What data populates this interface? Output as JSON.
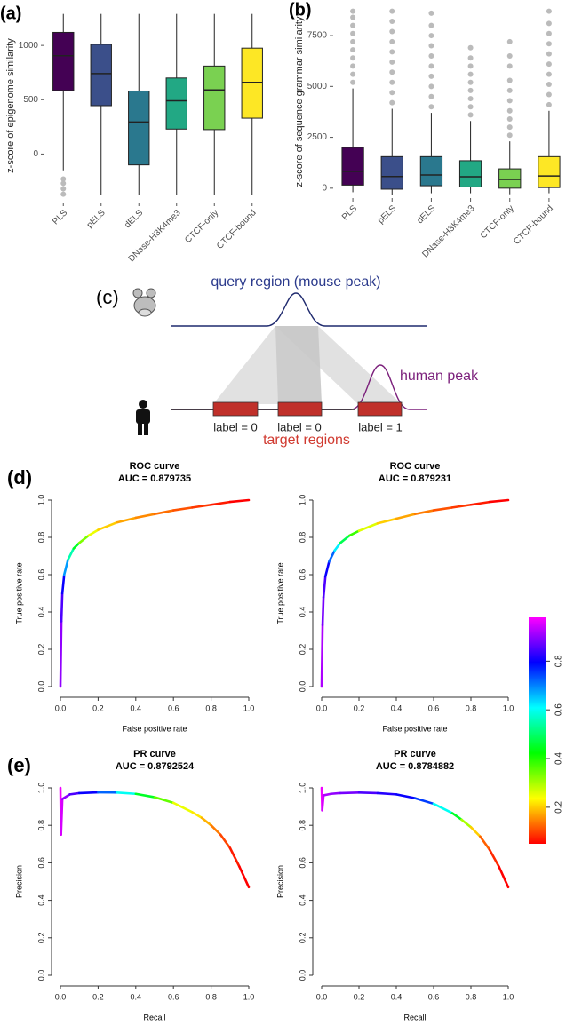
{
  "chart_data": [
    {
      "type": "box",
      "panel": "(a)",
      "ylabel": "z-score of epigenome similarity",
      "categories": [
        "PLS",
        "pELS",
        "dELS",
        "DNase-H3K4me3",
        "CTCF-only",
        "CTCF-bound"
      ],
      "colors": [
        "#440154",
        "#3b4f8a",
        "#2a788e",
        "#22a884",
        "#7ad151",
        "#fde725"
      ],
      "boxes": [
        {
          "min": -150,
          "q1": 585,
          "median": 905,
          "q3": 1120,
          "max": 1290,
          "outliers": [
            -230,
            -270,
            -320,
            -370
          ]
        },
        {
          "min": -380,
          "q1": 445,
          "median": 740,
          "q3": 1010,
          "max": 1290,
          "outliers": []
        },
        {
          "min": -380,
          "q1": -100,
          "median": 295,
          "q3": 580,
          "max": 1290,
          "outliers": []
        },
        {
          "min": -380,
          "q1": 230,
          "median": 490,
          "q3": 700,
          "max": 1290,
          "outliers": []
        },
        {
          "min": -380,
          "q1": 225,
          "median": 590,
          "q3": 810,
          "max": 1290,
          "outliers": []
        },
        {
          "min": -380,
          "q1": 330,
          "median": 660,
          "q3": 975,
          "max": 1290,
          "outliers": []
        }
      ],
      "ylim": [
        -430,
        1320
      ],
      "yticks": [
        0,
        500,
        1000
      ]
    },
    {
      "type": "box",
      "panel": "(b)",
      "ylabel": "z-score of sequence grammar similarity",
      "categories": [
        "PLS",
        "pELS",
        "dELS",
        "DNase-H3K4me3",
        "CTCF-only",
        "CTCF-bound"
      ],
      "colors": [
        "#440154",
        "#3b4f8a",
        "#2a788e",
        "#22a884",
        "#7ad151",
        "#fde725"
      ],
      "boxes": [
        {
          "min": -200,
          "q1": 150,
          "median": 820,
          "q3": 2000,
          "max": 4900,
          "outliers": [
            5200,
            5600,
            6000,
            6400,
            6800,
            7200,
            7600,
            8000,
            8400,
            8700
          ]
        },
        {
          "min": -350,
          "q1": -50,
          "median": 570,
          "q3": 1550,
          "max": 3900,
          "outliers": [
            4200,
            4700,
            5200,
            5700,
            6200,
            6700,
            7200,
            7700,
            8200,
            8700
          ]
        },
        {
          "min": -250,
          "q1": 120,
          "median": 650,
          "q3": 1550,
          "max": 3700,
          "outliers": [
            4000,
            4500,
            5000,
            5500,
            6000,
            6500,
            7000,
            7500,
            8000,
            8600
          ]
        },
        {
          "min": -250,
          "q1": 60,
          "median": 560,
          "q3": 1350,
          "max": 3300,
          "outliers": [
            3600,
            4000,
            4400,
            4800,
            5200,
            5600,
            6000,
            6400,
            6900
          ]
        },
        {
          "min": -300,
          "q1": 0,
          "median": 430,
          "q3": 950,
          "max": 2300,
          "outliers": [
            2600,
            3000,
            3400,
            3800,
            4300,
            4800,
            5300,
            6000,
            6500,
            7200
          ]
        },
        {
          "min": -250,
          "q1": 30,
          "median": 600,
          "q3": 1550,
          "max": 3800,
          "outliers": [
            4100,
            4600,
            5100,
            5600,
            6100,
            6600,
            7100,
            7600,
            8100,
            8700
          ]
        }
      ],
      "ylim": [
        -400,
        8900
      ],
      "yticks": [
        0,
        2500,
        5000,
        7500
      ]
    },
    {
      "type": "line",
      "panel": "(d)",
      "title": "ROC curve",
      "subtitle": "AUC = 0.879735",
      "xlabel": "False positive rate",
      "ylabel": "True positive rate",
      "x": [
        0,
        0.005,
        0.01,
        0.02,
        0.04,
        0.07,
        0.1,
        0.15,
        0.2,
        0.3,
        0.4,
        0.5,
        0.6,
        0.7,
        0.8,
        0.9,
        1.0
      ],
      "values": [
        0,
        0.35,
        0.5,
        0.6,
        0.68,
        0.74,
        0.77,
        0.81,
        0.84,
        0.88,
        0.905,
        0.925,
        0.945,
        0.96,
        0.975,
        0.99,
        1.0
      ],
      "thresholds": [
        0.98,
        0.9,
        0.85,
        0.8,
        0.68,
        0.55,
        0.45,
        0.33,
        0.25,
        0.2,
        0.17,
        0.15,
        0.13,
        0.11,
        0.09,
        0.07,
        0.05
      ],
      "xlim": [
        0,
        1
      ],
      "ylim": [
        0,
        1
      ],
      "xticks": [
        {
          "value": 0,
          "label": "0.0"
        },
        0.2,
        0.4,
        0.6,
        0.8,
        {
          "value": 1,
          "label": "1.0"
        }
      ],
      "yticks": [
        {
          "value": 0,
          "label": "0.0"
        },
        0.2,
        0.4,
        0.6,
        0.8,
        {
          "value": 1,
          "label": "1.0"
        }
      ]
    },
    {
      "type": "line",
      "title": "ROC curve",
      "subtitle": "AUC = 0.879231",
      "xlabel": "False positive rate",
      "ylabel": "True positive rate",
      "x": [
        0,
        0.005,
        0.01,
        0.02,
        0.04,
        0.07,
        0.1,
        0.15,
        0.2,
        0.3,
        0.4,
        0.5,
        0.6,
        0.7,
        0.8,
        0.9,
        1.0
      ],
      "values": [
        0,
        0.33,
        0.48,
        0.59,
        0.67,
        0.73,
        0.77,
        0.81,
        0.835,
        0.875,
        0.9,
        0.925,
        0.945,
        0.96,
        0.975,
        0.99,
        1.0
      ],
      "thresholds": [
        0.98,
        0.92,
        0.88,
        0.85,
        0.8,
        0.72,
        0.62,
        0.48,
        0.38,
        0.26,
        0.2,
        0.17,
        0.14,
        0.11,
        0.09,
        0.07,
        0.05
      ],
      "xlim": [
        0,
        1
      ],
      "ylim": [
        0,
        1
      ],
      "xticks": [
        {
          "value": 0,
          "label": "0.0"
        },
        0.2,
        0.4,
        0.6,
        0.8,
        {
          "value": 1,
          "label": "1.0"
        }
      ],
      "yticks": [
        {
          "value": 0,
          "label": "0.0"
        },
        0.2,
        0.4,
        0.6,
        0.8,
        {
          "value": 1,
          "label": "1.0"
        }
      ]
    },
    {
      "type": "line",
      "panel": "(e)",
      "title": "PR curve",
      "subtitle": "AUC = 0.8792524",
      "xlabel": "Recall",
      "ylabel": "Precision",
      "x": [
        0,
        0.003,
        0.01,
        0.05,
        0.1,
        0.2,
        0.3,
        0.4,
        0.5,
        0.6,
        0.7,
        0.75,
        0.8,
        0.85,
        0.9,
        0.95,
        1.0
      ],
      "values": [
        1.0,
        0.75,
        0.94,
        0.965,
        0.972,
        0.976,
        0.975,
        0.968,
        0.95,
        0.92,
        0.87,
        0.84,
        0.8,
        0.75,
        0.68,
        0.58,
        0.47
      ],
      "thresholds": [
        0.98,
        0.97,
        0.95,
        0.9,
        0.85,
        0.8,
        0.72,
        0.6,
        0.45,
        0.35,
        0.25,
        0.22,
        0.18,
        0.14,
        0.1,
        0.07,
        0.05
      ],
      "xlim": [
        0,
        1
      ],
      "ylim": [
        0,
        1
      ],
      "xticks": [
        {
          "value": 0,
          "label": "0.0"
        },
        0.2,
        0.4,
        0.6,
        0.8,
        {
          "value": 1,
          "label": "1.0"
        }
      ],
      "yticks": [
        {
          "value": 0,
          "label": "0.0"
        },
        0.2,
        0.4,
        0.6,
        0.8,
        {
          "value": 1,
          "label": "1.0"
        }
      ]
    },
    {
      "type": "line",
      "title": "PR curve",
      "subtitle": "AUC = 0.8784882",
      "xlabel": "Recall",
      "ylabel": "Precision",
      "x": [
        0,
        0.003,
        0.01,
        0.05,
        0.1,
        0.2,
        0.3,
        0.4,
        0.5,
        0.6,
        0.7,
        0.75,
        0.8,
        0.85,
        0.9,
        0.95,
        1.0
      ],
      "values": [
        1.0,
        0.88,
        0.96,
        0.968,
        0.972,
        0.975,
        0.972,
        0.965,
        0.945,
        0.915,
        0.865,
        0.83,
        0.79,
        0.74,
        0.67,
        0.58,
        0.47
      ],
      "thresholds": [
        0.98,
        0.97,
        0.95,
        0.92,
        0.9,
        0.88,
        0.85,
        0.82,
        0.8,
        0.75,
        0.6,
        0.45,
        0.3,
        0.2,
        0.12,
        0.08,
        0.05
      ],
      "xlim": [
        0,
        1
      ],
      "ylim": [
        0,
        1
      ],
      "xticks": [
        {
          "value": 0,
          "label": "0.0"
        },
        0.2,
        0.4,
        0.6,
        0.8,
        {
          "value": 1,
          "label": "1.0"
        }
      ],
      "yticks": [
        {
          "value": 0,
          "label": "0.0"
        },
        0.2,
        0.4,
        0.6,
        0.8,
        {
          "value": 1,
          "label": "1.0"
        }
      ]
    },
    {
      "type": "colorbar",
      "colors": [
        "#ff0000",
        "#ffff00",
        "#00ff00",
        "#00ffff",
        "#0000ff",
        "#ff00ff"
      ],
      "ylim": [
        0.05,
        0.98
      ],
      "yticks": [
        0.2,
        0.4,
        0.6,
        0.8
      ]
    }
  ],
  "diagram": {
    "panel": "(c)",
    "query": "query region (mouse peak)",
    "human_peak": "human peak",
    "labels": [
      "label = 0",
      "label = 0",
      "label = 1"
    ],
    "target": "target regions"
  }
}
